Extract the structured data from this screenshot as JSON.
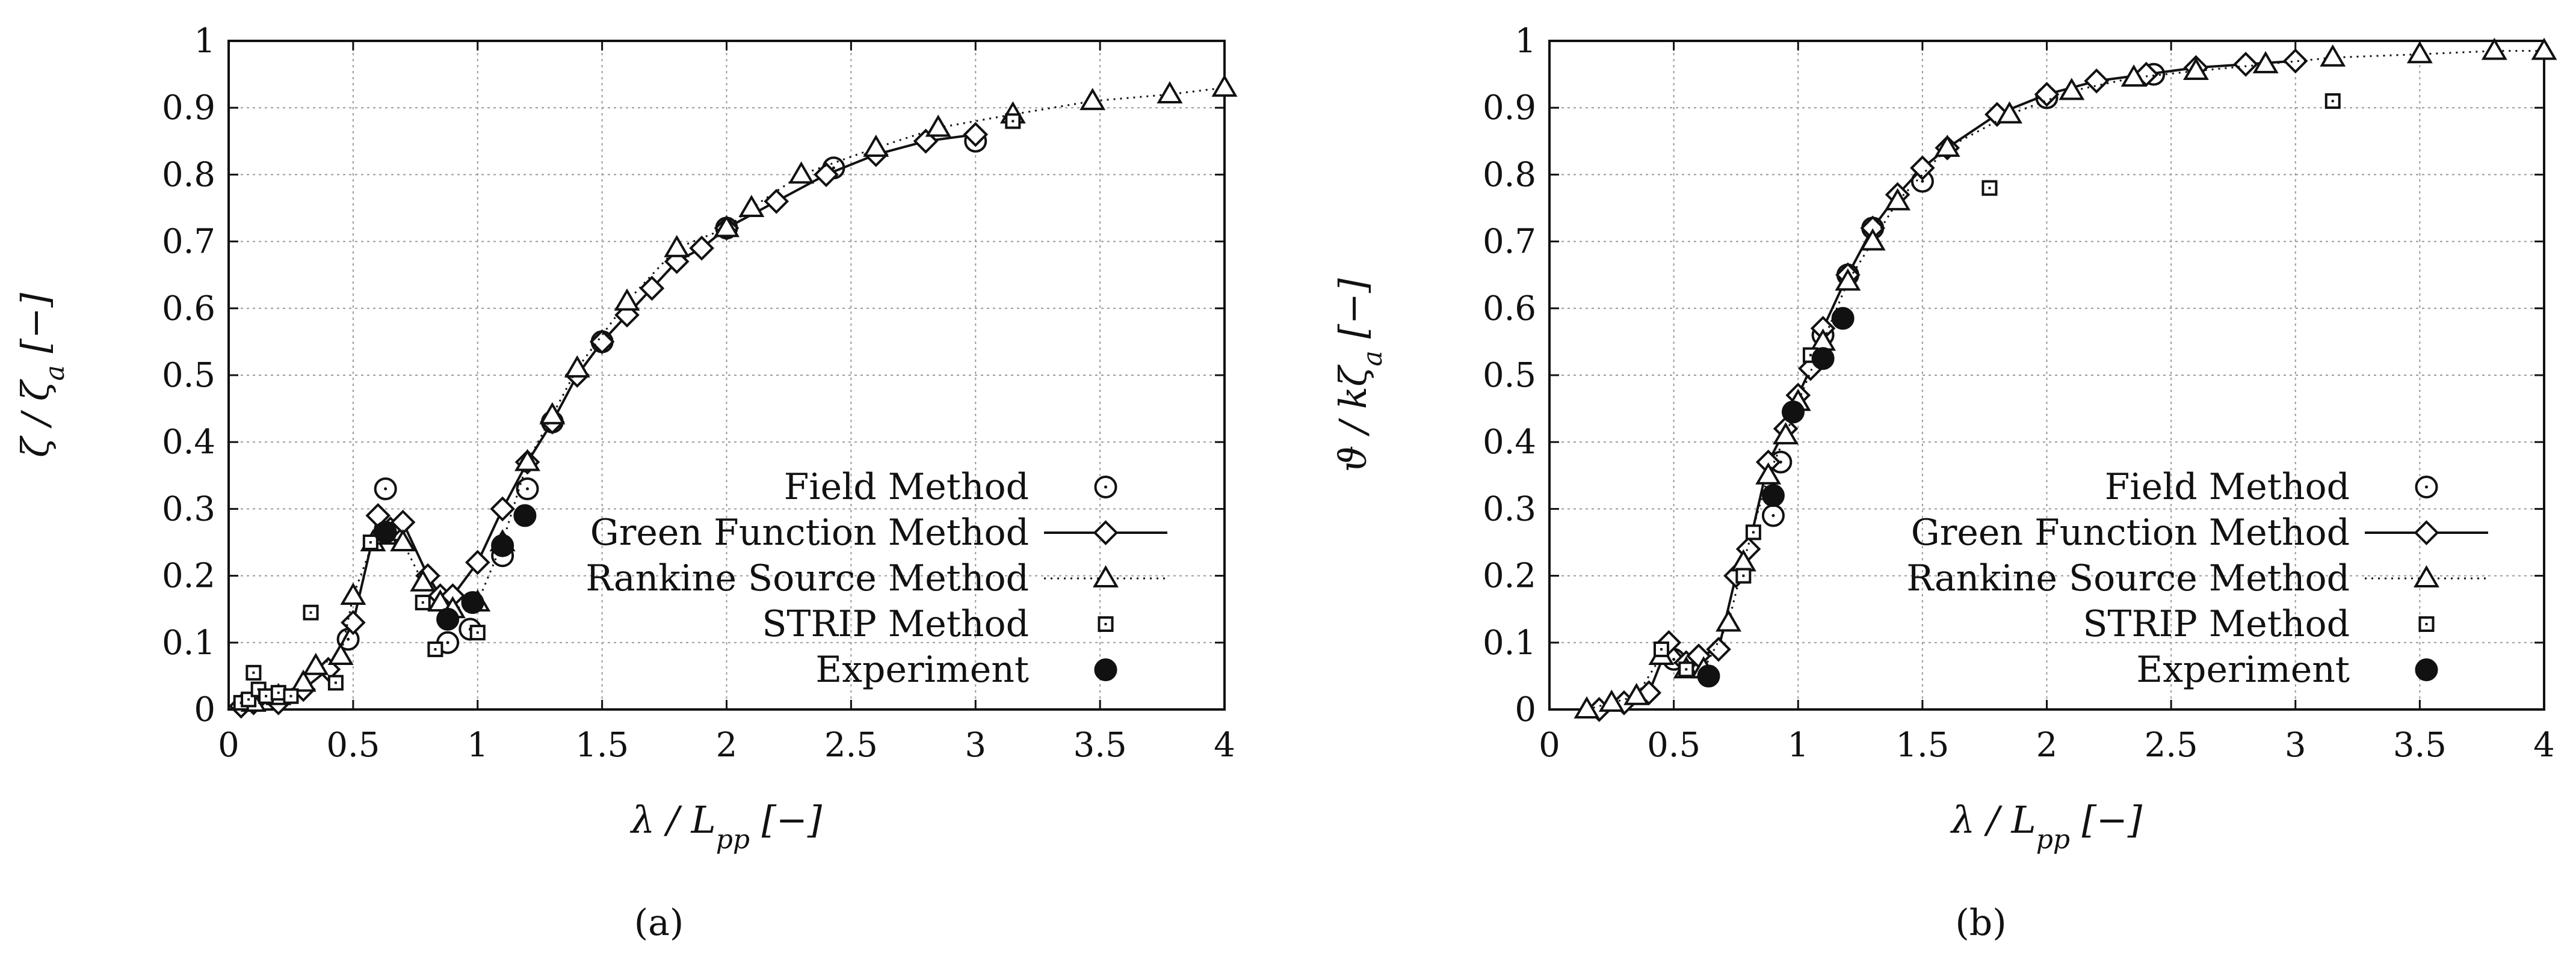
{
  "chart_data": [
    {
      "id": "a",
      "type": "line",
      "panel_label": "(a)",
      "xlabel": "λ / L_pp [−]",
      "ylabel": "ζ / ζ_a [−]",
      "xlim": [
        0,
        4
      ],
      "ylim": [
        0,
        1
      ],
      "xticks": [
        "0",
        "0.5",
        "1",
        "1.5",
        "2",
        "2.5",
        "3",
        "3.5",
        "4"
      ],
      "yticks": [
        "0",
        "0.1",
        "0.2",
        "0.3",
        "0.4",
        "0.5",
        "0.6",
        "0.7",
        "0.8",
        "0.9",
        "1"
      ],
      "grid": true,
      "legend_position": "bottom-right",
      "series": [
        {
          "name": "Field Method",
          "style": "circle",
          "x": [
            0.48,
            0.63,
            0.88,
            0.97,
            1.1,
            1.2,
            1.3,
            1.5,
            2.0,
            2.43,
            3.0
          ],
          "y": [
            0.105,
            0.33,
            0.1,
            0.12,
            0.23,
            0.33,
            0.43,
            0.55,
            0.72,
            0.81,
            0.85
          ]
        },
        {
          "name": "Green Function Method",
          "style": "solid-diamond",
          "x": [
            0.05,
            0.1,
            0.2,
            0.3,
            0.4,
            0.5,
            0.6,
            0.65,
            0.7,
            0.8,
            0.85,
            0.9,
            1.0,
            1.1,
            1.2,
            1.3,
            1.4,
            1.5,
            1.6,
            1.7,
            1.8,
            1.9,
            2.0,
            2.2,
            2.4,
            2.6,
            2.8,
            3.0
          ],
          "y": [
            0.005,
            0.01,
            0.01,
            0.03,
            0.06,
            0.13,
            0.29,
            0.27,
            0.28,
            0.2,
            0.17,
            0.17,
            0.22,
            0.3,
            0.37,
            0.43,
            0.5,
            0.55,
            0.59,
            0.63,
            0.67,
            0.69,
            0.72,
            0.76,
            0.8,
            0.83,
            0.85,
            0.86
          ]
        },
        {
          "name": "Rankine Source Method",
          "style": "dotted-triangle",
          "x": [
            0.1,
            0.2,
            0.3,
            0.35,
            0.45,
            0.5,
            0.58,
            0.63,
            0.7,
            0.78,
            0.85,
            0.9,
            1.0,
            1.1,
            1.2,
            1.3,
            1.4,
            1.6,
            1.8,
            2.0,
            2.1,
            2.3,
            2.6,
            2.85,
            3.15,
            3.47,
            3.78,
            4.0
          ],
          "y": [
            0.01,
            0.02,
            0.04,
            0.065,
            0.08,
            0.17,
            0.25,
            0.26,
            0.25,
            0.19,
            0.16,
            0.15,
            0.16,
            0.25,
            0.37,
            0.44,
            0.51,
            0.61,
            0.69,
            0.72,
            0.75,
            0.8,
            0.84,
            0.87,
            0.89,
            0.91,
            0.92,
            0.93
          ]
        },
        {
          "name": "STRIP Method",
          "style": "square",
          "x": [
            0.05,
            0.08,
            0.1,
            0.12,
            0.15,
            0.2,
            0.25,
            0.33,
            0.43,
            0.57,
            0.78,
            0.83,
            1.0,
            1.1,
            3.15
          ],
          "y": [
            0.01,
            0.015,
            0.055,
            0.03,
            0.02,
            0.025,
            0.02,
            0.145,
            0.04,
            0.25,
            0.16,
            0.09,
            0.115,
            0.245,
            0.88
          ]
        },
        {
          "name": "Experiment",
          "style": "filled-circle",
          "x": [
            0.63,
            0.88,
            0.98,
            1.1,
            1.19
          ],
          "y": [
            0.265,
            0.135,
            0.16,
            0.245,
            0.29
          ]
        }
      ]
    },
    {
      "id": "b",
      "type": "line",
      "panel_label": "(b)",
      "xlabel": "λ / L_pp [−]",
      "ylabel": "ϑ / kζ_a [−]",
      "xlim": [
        0,
        4
      ],
      "ylim": [
        0,
        1
      ],
      "xticks": [
        "0",
        "0.5",
        "1",
        "1.5",
        "2",
        "2.5",
        "3",
        "3.5",
        "4"
      ],
      "yticks": [
        "0",
        "0.1",
        "0.2",
        "0.3",
        "0.4",
        "0.5",
        "0.6",
        "0.7",
        "0.8",
        "0.9",
        "1"
      ],
      "grid": true,
      "legend_position": "bottom-right",
      "series": [
        {
          "name": "Field Method",
          "style": "circle",
          "x": [
            0.5,
            0.9,
            0.93,
            1.1,
            1.2,
            1.3,
            1.5,
            2.0,
            2.43
          ],
          "y": [
            0.075,
            0.29,
            0.37,
            0.56,
            0.65,
            0.72,
            0.79,
            0.915,
            0.95
          ]
        },
        {
          "name": "Green Function Method",
          "style": "solid-diamond",
          "x": [
            0.2,
            0.3,
            0.4,
            0.48,
            0.55,
            0.6,
            0.68,
            0.75,
            0.8,
            0.88,
            0.95,
            1.0,
            1.05,
            1.1,
            1.2,
            1.3,
            1.4,
            1.5,
            1.6,
            1.8,
            2.0,
            2.2,
            2.4,
            2.6,
            2.8,
            3.0
          ],
          "y": [
            0.0,
            0.01,
            0.025,
            0.1,
            0.07,
            0.08,
            0.09,
            0.2,
            0.24,
            0.37,
            0.42,
            0.47,
            0.51,
            0.57,
            0.65,
            0.72,
            0.77,
            0.81,
            0.84,
            0.89,
            0.92,
            0.94,
            0.95,
            0.96,
            0.965,
            0.97
          ]
        },
        {
          "name": "Rankine Source Method",
          "style": "dotted-triangle",
          "x": [
            0.15,
            0.25,
            0.35,
            0.45,
            0.55,
            0.62,
            0.72,
            0.78,
            0.88,
            0.95,
            1.0,
            1.1,
            1.2,
            1.3,
            1.4,
            1.6,
            1.85,
            2.1,
            2.35,
            2.6,
            2.88,
            3.15,
            3.5,
            3.8,
            4.0
          ],
          "y": [
            0.0,
            0.01,
            0.02,
            0.08,
            0.06,
            0.06,
            0.13,
            0.22,
            0.35,
            0.41,
            0.46,
            0.55,
            0.64,
            0.7,
            0.76,
            0.84,
            0.89,
            0.925,
            0.945,
            0.955,
            0.965,
            0.975,
            0.98,
            0.985,
            0.985
          ]
        },
        {
          "name": "STRIP Method",
          "style": "square",
          "x": [
            0.45,
            0.55,
            0.78,
            0.82,
            1.05,
            1.77,
            3.15
          ],
          "y": [
            0.09,
            0.06,
            0.2,
            0.265,
            0.53,
            0.78,
            0.91
          ]
        },
        {
          "name": "Experiment",
          "style": "filled-circle",
          "x": [
            0.64,
            0.9,
            0.98,
            1.1,
            1.18
          ],
          "y": [
            0.05,
            0.32,
            0.445,
            0.525,
            0.585
          ]
        }
      ]
    }
  ]
}
